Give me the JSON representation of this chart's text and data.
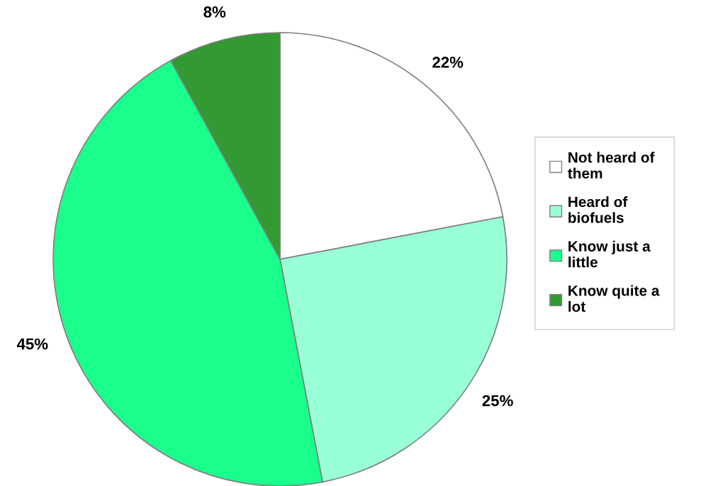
{
  "chart_data": {
    "type": "pie",
    "categories": [
      "Not heard of them",
      "Heard of biofuels",
      "Know just a little",
      "Know quite a lot"
    ],
    "values": [
      22,
      25,
      45,
      8
    ],
    "colors": [
      "#ffffff",
      "#99ffd6",
      "#1aff8c",
      "#339933"
    ],
    "value_labels": [
      "22%",
      "25%",
      "45%",
      "8%"
    ],
    "legend": "right"
  }
}
